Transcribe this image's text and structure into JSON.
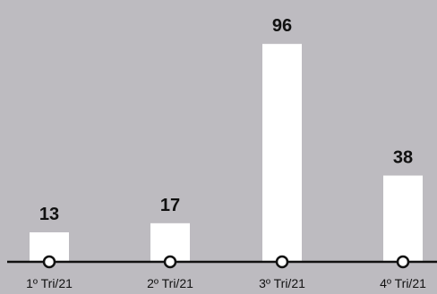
{
  "chart_data": {
    "type": "bar",
    "categories": [
      "1º Tri/21",
      "2º Tri/21",
      "3º Tri/21",
      "4º Tri/21"
    ],
    "values": [
      13,
      17,
      96,
      38
    ],
    "ylim": [
      0,
      100
    ],
    "grid": false,
    "legend": "none"
  },
  "colors": {
    "background": "#bdbbc0",
    "bar": "#ffffff",
    "axis": "#111111",
    "marker_fill": "#ffffff"
  }
}
